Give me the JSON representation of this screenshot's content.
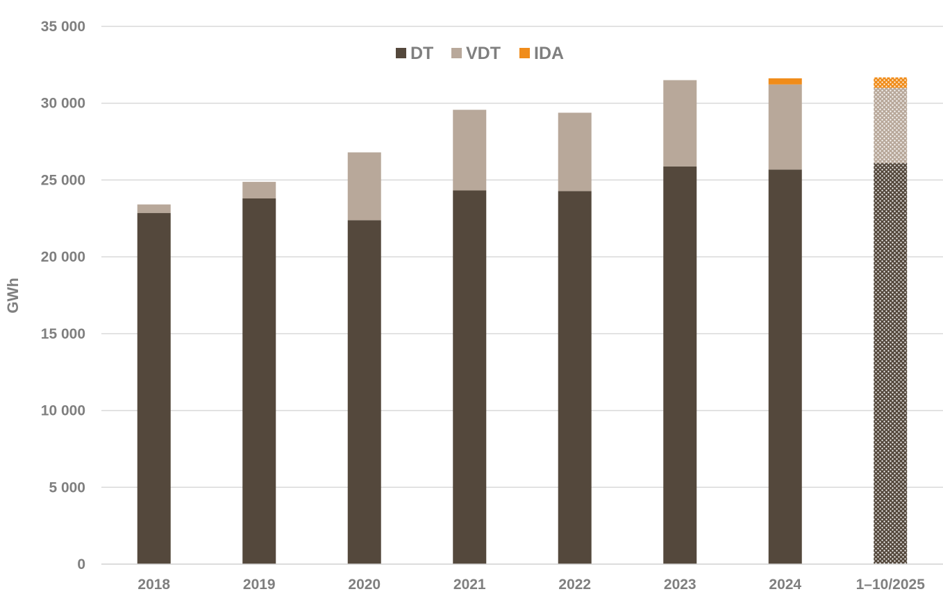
{
  "chart_data": {
    "type": "bar",
    "stacked": true,
    "title": "",
    "xlabel": "",
    "ylabel": "GWh",
    "ylim": [
      0,
      35000
    ],
    "yticks": [
      0,
      5000,
      10000,
      15000,
      20000,
      25000,
      30000,
      35000
    ],
    "ytick_labels": [
      "0",
      "5 000",
      "10 000",
      "15 000",
      "20 000",
      "25 000",
      "30 000",
      "35 000"
    ],
    "categories": [
      "2018",
      "2019",
      "2020",
      "2021",
      "2022",
      "2023",
      "2024",
      "1–10/2025"
    ],
    "series": [
      {
        "name": "DT",
        "color": "#54483c",
        "values": [
          22850,
          23800,
          22380,
          24320,
          24280,
          25880,
          25680,
          26100
        ]
      },
      {
        "name": "VDT",
        "color": "#b8a89a",
        "values": [
          560,
          1080,
          4420,
          5250,
          5100,
          5620,
          5540,
          4900
        ]
      },
      {
        "name": "IDA",
        "color": "#f08c1a",
        "values": [
          0,
          0,
          0,
          0,
          0,
          0,
          400,
          680
        ]
      }
    ],
    "patterned_categories": [
      "1–10/2025"
    ],
    "grid": true,
    "legend_position": "top-center"
  }
}
